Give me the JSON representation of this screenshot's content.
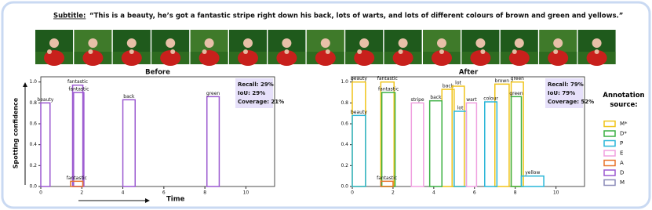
{
  "subtitle": {
    "label": "Subtitle:",
    "text": "“This is a beauty, he’s got a fantastic stripe right down his back, lots of warts, and lots of different colours of brown and green and yellows.”"
  },
  "chart_data": [
    {
      "type": "interval",
      "title": "Before",
      "ylabel": "Spotting confidence",
      "xlabel": "Time",
      "xlim": [
        0,
        11.4
      ],
      "ylim": [
        0,
        1.05
      ],
      "xticks": [
        0,
        2,
        4,
        6,
        8,
        10
      ],
      "yticks": [
        {
          "value": 0,
          "label": "0.0"
        },
        0.2,
        0.4,
        0.6,
        0.8,
        {
          "value": 1,
          "label": "1.0"
        }
      ],
      "metrics": [
        "Recall: 29%",
        "IoU: 29%",
        "Coverage: 21%"
      ],
      "series": [
        {
          "name": "D",
          "color": "#9b59d0",
          "starts": [
            0,
            1.55,
            1.6,
            4.0,
            8.1
          ],
          "ends": [
            0.45,
            2.05,
            2.1,
            4.6,
            8.7
          ],
          "values": [
            0.8,
            0.97,
            0.9,
            0.83,
            0.86
          ],
          "labels": [
            "beauty",
            "fantastic",
            "fantastic",
            "back",
            "green"
          ]
        },
        {
          "name": "A",
          "color": "#e8742c",
          "starts": [
            1.45
          ],
          "ends": [
            2.05
          ],
          "values": [
            0.05
          ],
          "labels": [
            "fantastic"
          ]
        }
      ]
    },
    {
      "type": "interval",
      "title": "After",
      "legend_title": "Annotation source:",
      "xlim": [
        0,
        11.4
      ],
      "ylim": [
        0,
        1.05
      ],
      "xticks": [
        0,
        2,
        4,
        6,
        8,
        10
      ],
      "yticks": [
        {
          "value": 0,
          "label": "0.0"
        },
        0.2,
        0.4,
        0.6,
        0.8,
        {
          "value": 1,
          "label": "1.0"
        }
      ],
      "metrics": [
        "Recall: 79%",
        "IoU: 79%",
        "Coverage: 52%"
      ],
      "series": [
        {
          "name": "M*",
          "color": "#f0c419",
          "starts": [
            0,
            1.4,
            4.4,
            4.9,
            7.0,
            7.8
          ],
          "ends": [
            0.65,
            2.05,
            5.0,
            5.5,
            7.7,
            8.4
          ],
          "values": [
            1.0,
            1.0,
            0.93,
            0.96,
            0.98,
            1.0
          ],
          "labels": [
            "beauty",
            "fantastic",
            "back",
            "lot",
            "brown",
            "green"
          ]
        },
        {
          "name": "D*",
          "color": "#3cb043",
          "starts": [
            1.45,
            3.8,
            7.8
          ],
          "ends": [
            2.1,
            4.4,
            8.3
          ],
          "values": [
            0.9,
            0.82,
            0.86
          ],
          "labels": [
            "fantastic",
            "back",
            "green"
          ]
        },
        {
          "name": "P",
          "color": "#29b6d8",
          "starts": [
            0,
            5.0,
            6.5,
            8.3
          ],
          "ends": [
            0.65,
            5.6,
            7.1,
            9.4
          ],
          "values": [
            0.68,
            0.72,
            0.81,
            0.1
          ],
          "labels": [
            "beauty",
            "lot",
            "colour",
            "yellow"
          ]
        },
        {
          "name": "E",
          "color": "#f0a0e0",
          "starts": [
            2.9,
            5.6
          ],
          "ends": [
            3.5,
            6.1
          ],
          "values": [
            0.8,
            0.8
          ],
          "labels": [
            "stripe",
            "wart"
          ]
        },
        {
          "name": "A",
          "color": "#e8742c",
          "starts": [
            1.4
          ],
          "ends": [
            2.0
          ],
          "values": [
            0.05
          ],
          "labels": [
            "fantastic"
          ]
        },
        {
          "name": "D",
          "color": "#9b59d0",
          "starts": [],
          "ends": [],
          "values": [],
          "labels": []
        },
        {
          "name": "M",
          "color": "#8a8ab8",
          "starts": [],
          "ends": [],
          "values": [],
          "labels": []
        }
      ]
    }
  ]
}
